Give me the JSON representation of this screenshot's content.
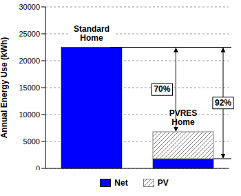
{
  "chart_data": {
    "type": "bar",
    "stacked": true,
    "categories": [
      "Standard Home",
      "PVRES Home"
    ],
    "series": [
      {
        "name": "Net",
        "color": "#0000ff",
        "values": [
          22500,
          1800
        ]
      },
      {
        "name": "PV",
        "color": "#808080",
        "values": [
          0,
          5000
        ]
      }
    ],
    "y_label": "Annual Energy Use (kWh)",
    "ylim": [
      0,
      30000
    ],
    "yticks": [
      0,
      5000,
      10000,
      15000,
      20000,
      25000,
      30000
    ],
    "grid": true,
    "legend": "bottom",
    "tick_labels": "y",
    "annotations": [
      "70%",
      "92%"
    ]
  }
}
